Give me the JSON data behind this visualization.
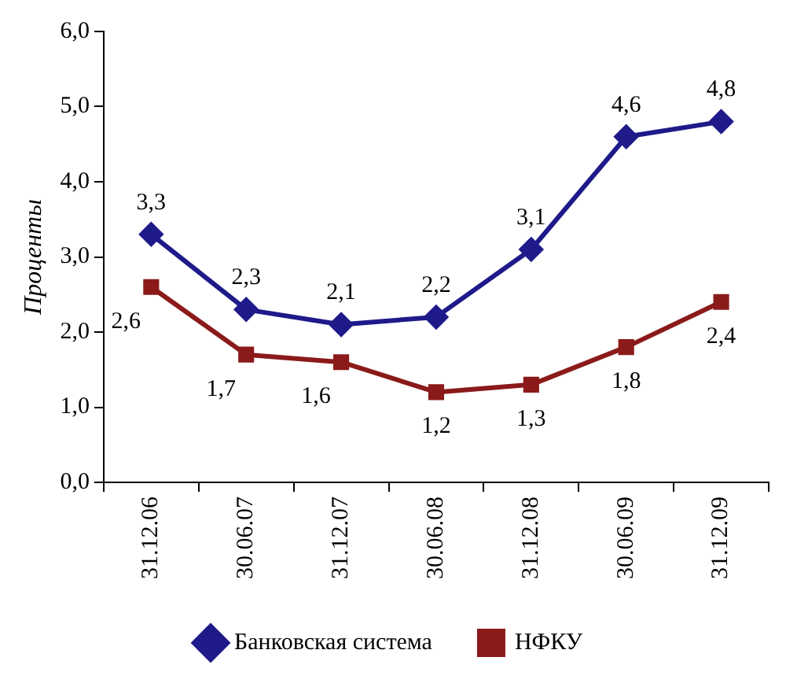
{
  "chart_data": {
    "type": "line",
    "ylabel": "Проценты",
    "categories": [
      "31.12.06",
      "30.06.07",
      "31.12.07",
      "30.06.08",
      "31.12.08",
      "30.06.09",
      "31.12.09"
    ],
    "series": [
      {
        "name": "Банковская система",
        "color": "#1f1a8a",
        "marker": "diamond",
        "values": [
          3.3,
          2.3,
          2.1,
          2.2,
          3.1,
          4.6,
          4.8
        ],
        "value_labels": [
          "3,3",
          "2,3",
          "2,1",
          "2,2",
          "3,1",
          "4,6",
          "4,8"
        ]
      },
      {
        "name": "НФКУ",
        "color": "#8b1a1a",
        "marker": "square",
        "values": [
          2.6,
          1.7,
          1.6,
          1.2,
          1.3,
          1.8,
          2.4
        ],
        "value_labels": [
          "2,6",
          "1,7",
          "1,6",
          "1,2",
          "1,3",
          "1,8",
          "2,4"
        ]
      }
    ],
    "ylim": [
      0,
      6
    ],
    "yticks": [
      {
        "value": 0,
        "label": "0,0"
      },
      {
        "value": 1,
        "label": "1,0"
      },
      {
        "value": 2,
        "label": "2,0"
      },
      {
        "value": 3,
        "label": "3,0"
      },
      {
        "value": 4,
        "label": "4,0"
      },
      {
        "value": 5,
        "label": "5,0"
      },
      {
        "value": 6,
        "label": "6,0"
      }
    ],
    "legend": "bottom",
    "line_style": "solid"
  }
}
